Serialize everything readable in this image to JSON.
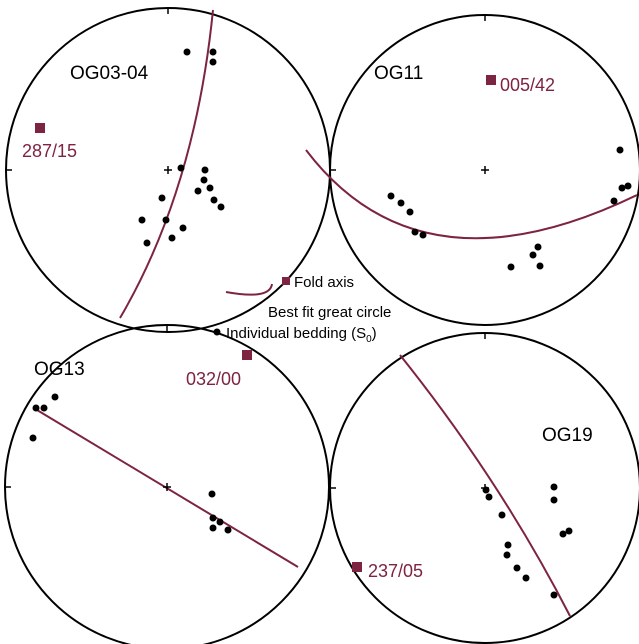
{
  "panels": [
    {
      "name": "OG03-04",
      "fold_axis": "287/15"
    },
    {
      "name": "OG11",
      "fold_axis": "005/42"
    },
    {
      "name": "OG13",
      "fold_axis": "032/00"
    },
    {
      "name": "OG19",
      "fold_axis": "237/05"
    }
  ],
  "legend": {
    "fold_axis": "Fold axis",
    "great_circle": "Best fit great circle",
    "bedding": {
      "text": "Individual bedding (S",
      "sub": "0",
      "end": ")"
    }
  }
}
